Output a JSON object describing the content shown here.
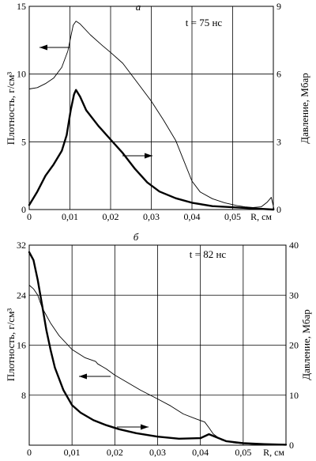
{
  "chart_data": [
    {
      "type": "line",
      "panel_label": "а",
      "annotation": "t = 75 нс",
      "xlabel": "R, см",
      "ylabel_left": "Плотность, г/см³",
      "ylabel_right": "Давление, Мбар",
      "x_ticks": [
        "0",
        "0,01",
        "0,02",
        "0,03",
        "0,04",
        "0,05"
      ],
      "y_left_ticks": [
        "0",
        "5",
        "10",
        "15"
      ],
      "y_right_ticks": [
        "0",
        "3",
        "6",
        "9"
      ],
      "xlim": [
        0,
        0.06
      ],
      "ylim_left": [
        0,
        15
      ],
      "ylim_right": [
        0,
        9
      ],
      "grid": true,
      "series": [
        {
          "axis": "left",
          "style": "thin",
          "points": [
            [
              0,
              8.9
            ],
            [
              0.002,
              9.0
            ],
            [
              0.004,
              9.3
            ],
            [
              0.006,
              9.7
            ],
            [
              0.008,
              10.5
            ],
            [
              0.0095,
              11.7
            ],
            [
              0.0108,
              13.6
            ],
            [
              0.0115,
              13.9
            ],
            [
              0.0125,
              13.7
            ],
            [
              0.015,
              12.9
            ],
            [
              0.018,
              12.1
            ],
            [
              0.02,
              11.6
            ],
            [
              0.023,
              10.8
            ],
            [
              0.026,
              9.6
            ],
            [
              0.03,
              8.0
            ],
            [
              0.033,
              6.6
            ],
            [
              0.036,
              5.1
            ],
            [
              0.038,
              3.6
            ],
            [
              0.04,
              2.1
            ],
            [
              0.042,
              1.3
            ],
            [
              0.045,
              0.8
            ],
            [
              0.048,
              0.5
            ],
            [
              0.051,
              0.3
            ],
            [
              0.053,
              0.2
            ],
            [
              0.055,
              0.15
            ],
            [
              0.057,
              0.2
            ],
            [
              0.0585,
              0.55
            ],
            [
              0.0595,
              0.9
            ],
            [
              0.0602,
              0.0
            ]
          ]
        },
        {
          "axis": "right",
          "style": "thick",
          "points": [
            [
              0,
              0.2
            ],
            [
              0.002,
              0.8
            ],
            [
              0.004,
              1.5
            ],
            [
              0.006,
              2.0
            ],
            [
              0.008,
              2.6
            ],
            [
              0.0092,
              3.3
            ],
            [
              0.0102,
              4.4
            ],
            [
              0.011,
              5.1
            ],
            [
              0.0115,
              5.3
            ],
            [
              0.0125,
              5.0
            ],
            [
              0.014,
              4.4
            ],
            [
              0.017,
              3.7
            ],
            [
              0.02,
              3.1
            ],
            [
              0.023,
              2.5
            ],
            [
              0.026,
              1.8
            ],
            [
              0.029,
              1.2
            ],
            [
              0.032,
              0.8
            ],
            [
              0.036,
              0.5
            ],
            [
              0.04,
              0.3
            ],
            [
              0.045,
              0.15
            ],
            [
              0.05,
              0.1
            ],
            [
              0.055,
              0.05
            ],
            [
              0.06,
              0.0
            ]
          ]
        }
      ]
    },
    {
      "type": "line",
      "panel_label": "б",
      "annotation": "t = 82 нс",
      "xlabel": "R, см",
      "ylabel_left": "Плотность, г/см³",
      "ylabel_right": "Давление, Мбар",
      "x_ticks": [
        "0",
        "0,01",
        "0,02",
        "0,03",
        "0,04",
        "0,05"
      ],
      "y_left_ticks": [
        "8",
        "16",
        "24",
        "32"
      ],
      "y_right_ticks": [
        "0",
        "10",
        "20",
        "30",
        "40"
      ],
      "xlim": [
        0,
        0.06
      ],
      "ylim_left": [
        0,
        32
      ],
      "ylim_right": [
        0,
        40
      ],
      "grid": true,
      "series": [
        {
          "axis": "left",
          "style": "thin",
          "points": [
            [
              0,
              25.6
            ],
            [
              0.001,
              25.0
            ],
            [
              0.002,
              24.0
            ],
            [
              0.003,
              22.0
            ],
            [
              0.005,
              19.5
            ],
            [
              0.007,
              17.5
            ],
            [
              0.01,
              15.3
            ],
            [
              0.013,
              14.0
            ],
            [
              0.0155,
              13.4
            ],
            [
              0.016,
              13.0
            ],
            [
              0.018,
              12.2
            ],
            [
              0.02,
              11.2
            ],
            [
              0.023,
              10.0
            ],
            [
              0.026,
              8.8
            ],
            [
              0.03,
              7.4
            ],
            [
              0.033,
              6.3
            ],
            [
              0.036,
              5.0
            ],
            [
              0.039,
              4.2
            ],
            [
              0.041,
              3.7
            ],
            [
              0.042,
              2.8
            ],
            [
              0.043,
              1.8
            ],
            [
              0.045,
              0.8
            ],
            [
              0.048,
              0.35
            ],
            [
              0.052,
              0.15
            ],
            [
              0.055,
              0.1
            ],
            [
              0.06,
              0.05
            ]
          ]
        },
        {
          "axis": "right",
          "style": "thick",
          "points": [
            [
              0,
              38.6
            ],
            [
              0.001,
              37.0
            ],
            [
              0.002,
              33.0
            ],
            [
              0.003,
              28.0
            ],
            [
              0.004,
              23.0
            ],
            [
              0.005,
              19.0
            ],
            [
              0.006,
              15.5
            ],
            [
              0.008,
              11.0
            ],
            [
              0.01,
              8.0
            ],
            [
              0.012,
              6.5
            ],
            [
              0.015,
              5.0
            ],
            [
              0.018,
              4.0
            ],
            [
              0.021,
              3.2
            ],
            [
              0.025,
              2.4
            ],
            [
              0.03,
              1.7
            ],
            [
              0.035,
              1.3
            ],
            [
              0.04,
              1.4
            ],
            [
              0.042,
              2.2
            ],
            [
              0.044,
              1.5
            ],
            [
              0.046,
              0.8
            ],
            [
              0.05,
              0.4
            ],
            [
              0.055,
              0.2
            ],
            [
              0.06,
              0.1
            ]
          ]
        }
      ]
    }
  ]
}
